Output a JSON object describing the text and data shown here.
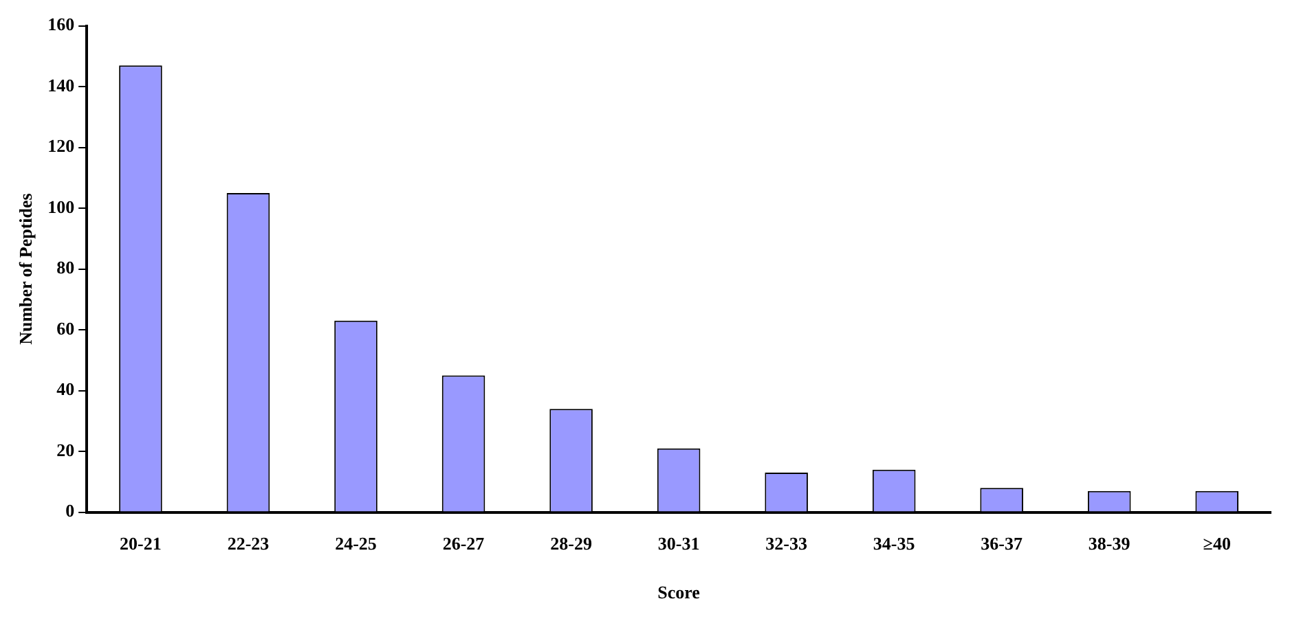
{
  "chart_data": {
    "type": "bar",
    "xlabel": "Score",
    "ylabel": "Number of Peptides",
    "categories": [
      "20-21",
      "22-23",
      "24-25",
      "26-27",
      "28-29",
      "30-31",
      "32-33",
      "34-35",
      "36-37",
      "38-39",
      "≥40"
    ],
    "values": [
      147,
      105,
      63,
      45,
      34,
      21,
      13,
      14,
      8,
      7,
      7
    ],
    "color": "#9999ff",
    "ylim": [
      0,
      160
    ],
    "yticks": [
      0,
      20,
      40,
      60,
      80,
      100,
      120,
      140,
      160
    ],
    "grid": false,
    "legend": false
  }
}
